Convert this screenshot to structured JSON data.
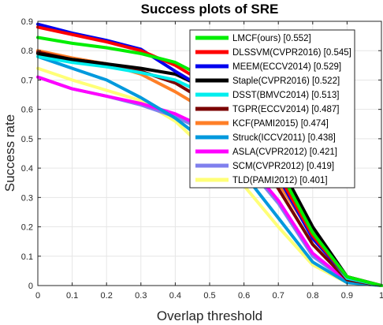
{
  "chart_data": {
    "type": "line",
    "title": "Success plots of SRE",
    "xlabel": "Overlap threshold",
    "ylabel": "Success rate",
    "xlim": [
      0,
      1
    ],
    "ylim": [
      0,
      0.9
    ],
    "xticks": [
      "0",
      "0.1",
      "0.2",
      "0.3",
      "0.4",
      "0.5",
      "0.6",
      "0.7",
      "0.8",
      "0.9",
      "1"
    ],
    "yticks": [
      "0",
      "0.1",
      "0.2",
      "0.3",
      "0.4",
      "0.5",
      "0.6",
      "0.7",
      "0.8",
      "0.9"
    ],
    "legend_position": "top-right",
    "x": [
      0,
      0.1,
      0.2,
      0.3,
      0.4,
      0.5,
      0.6,
      0.7,
      0.8,
      0.9,
      1.0
    ],
    "series": [
      {
        "label": "LMCF(ours) [0.552]",
        "color": "#00ee00",
        "values": [
          0.845,
          0.825,
          0.81,
          0.79,
          0.76,
          0.7,
          0.58,
          0.4,
          0.18,
          0.03,
          0.0
        ]
      },
      {
        "label": "DLSSVM(CVPR2016) [0.545]",
        "color": "#ff0000",
        "values": [
          0.88,
          0.855,
          0.83,
          0.8,
          0.75,
          0.68,
          0.56,
          0.38,
          0.17,
          0.03,
          0.0
        ]
      },
      {
        "label": "MEEM(ECCV2014) [0.529]",
        "color": "#0000ee",
        "values": [
          0.89,
          0.86,
          0.835,
          0.805,
          0.73,
          0.66,
          0.54,
          0.37,
          0.16,
          0.03,
          0.0
        ]
      },
      {
        "label": "Staple(CVPR2016) [0.522]",
        "color": "#000000",
        "values": [
          0.79,
          0.77,
          0.755,
          0.74,
          0.72,
          0.665,
          0.56,
          0.42,
          0.2,
          0.03,
          0.0
        ]
      },
      {
        "label": "DSST(BMVC2014) [0.513]",
        "color": "#00eeee",
        "values": [
          0.78,
          0.76,
          0.745,
          0.725,
          0.7,
          0.645,
          0.54,
          0.4,
          0.17,
          0.025,
          0.0
        ]
      },
      {
        "label": "TGPR(ECCV2014) [0.487]",
        "color": "#7a0000",
        "values": [
          0.795,
          0.77,
          0.755,
          0.73,
          0.69,
          0.62,
          0.5,
          0.33,
          0.14,
          0.02,
          0.0
        ]
      },
      {
        "label": "KCF(PAMI2015) [0.474]",
        "color": "#ff7f27",
        "values": [
          0.8,
          0.775,
          0.755,
          0.72,
          0.66,
          0.59,
          0.48,
          0.35,
          0.17,
          0.03,
          0.0
        ]
      },
      {
        "label": "Struck(ICCV2011) [0.438]",
        "color": "#0099dd",
        "values": [
          0.78,
          0.74,
          0.7,
          0.64,
          0.57,
          0.48,
          0.38,
          0.23,
          0.08,
          0.01,
          0.0
        ]
      },
      {
        "label": "ASLA(CVPR2012) [0.421]",
        "color": "#ff00ff",
        "values": [
          0.71,
          0.67,
          0.645,
          0.62,
          0.585,
          0.53,
          0.43,
          0.29,
          0.11,
          0.015,
          0.0
        ]
      },
      {
        "label": "SCM(CVPR2012) [0.419]",
        "color": "#8080ee",
        "values": [
          0.71,
          0.67,
          0.645,
          0.615,
          0.575,
          0.52,
          0.42,
          0.28,
          0.1,
          0.015,
          0.0
        ]
      },
      {
        "label": "TLD(PAMI2012) [0.401]",
        "color": "#ffff77",
        "values": [
          0.74,
          0.7,
          0.665,
          0.63,
          0.56,
          0.45,
          0.34,
          0.2,
          0.07,
          0.01,
          0.0
        ]
      }
    ]
  }
}
